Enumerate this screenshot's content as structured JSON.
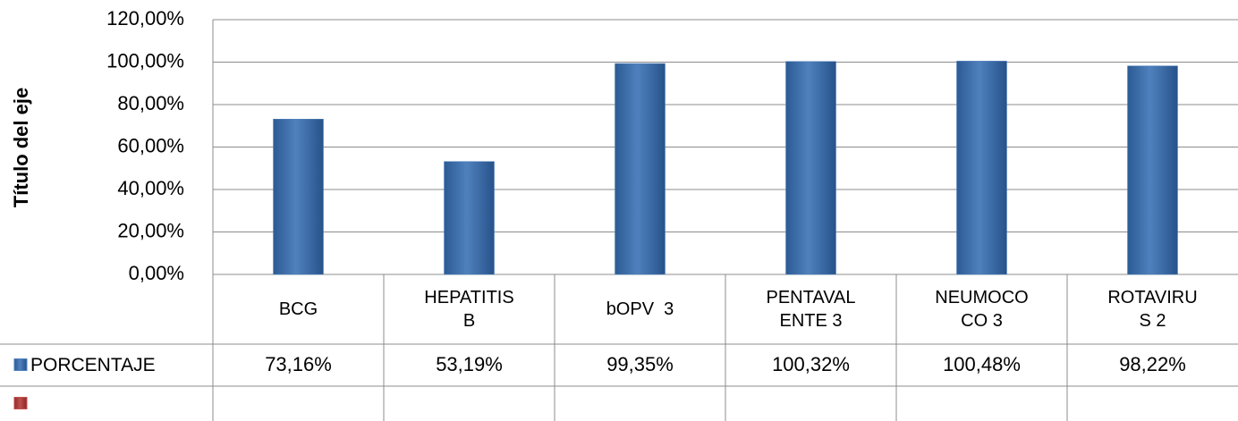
{
  "chart_data": {
    "type": "bar",
    "y_label": "Título del eje",
    "categories": [
      "BCG",
      "HEPATITIS\nB",
      "bOPV  3",
      "PENTAVAL\nENTE 3",
      "NEUMOCO\nCO 3",
      "ROTAVIRU\nS 2"
    ],
    "series": [
      {
        "name": "PORCENTAJE",
        "color": "#4f81bd",
        "values": [
          73.16,
          53.19,
          99.35,
          100.32,
          100.48,
          98.22
        ],
        "value_labels": [
          "73,16%",
          "53,19%",
          "99,35%",
          "100,32%",
          "100,48%",
          "98,22%"
        ]
      },
      {
        "color": "#c0504d",
        "values": [
          null,
          null,
          null,
          null,
          null,
          null
        ]
      }
    ],
    "ylim": [
      0,
      120
    ],
    "yticks": [
      {
        "value": 0,
        "label": "0,00%"
      },
      {
        "value": 20,
        "label": "20,00%"
      },
      {
        "value": 40,
        "label": "40,00%"
      },
      {
        "value": 60,
        "label": "60,00%"
      },
      {
        "value": 80,
        "label": "80,00%"
      },
      {
        "value": 100,
        "label": "100,00%"
      },
      {
        "value": 120,
        "label": "120,00%"
      }
    ],
    "grid": true
  }
}
